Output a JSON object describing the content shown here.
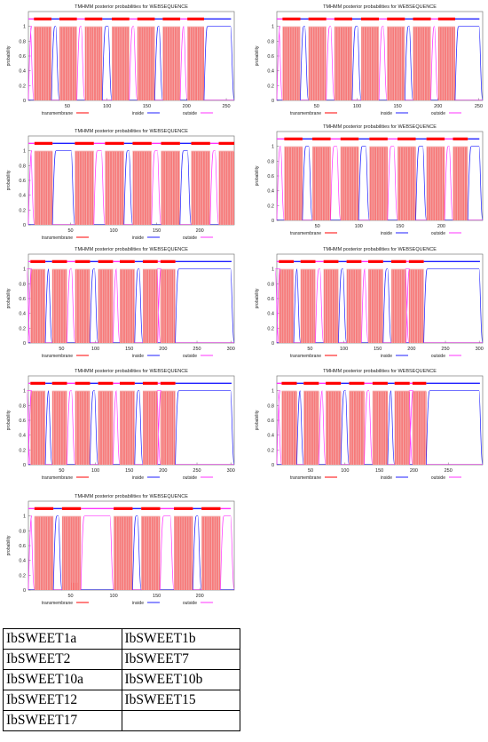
{
  "figure": {
    "panel_title": "TMHMM posterior probabilities for WEBSEQUENCE",
    "ylabel": "probability",
    "legend": [
      "transmembrane",
      "inside",
      "outside"
    ],
    "colors": {
      "transmembrane": "#ff0000",
      "fill": "#f4a6a6",
      "inside": "#1f1fff",
      "outside": "#ff33ff"
    }
  },
  "chart_data": [
    {
      "type": "line",
      "panel": "IbSWEET1a",
      "title": "TMHMM posterior probabilities for WEBSEQUENCE",
      "xlabel": "",
      "ylabel": "probability",
      "xlim": [
        1,
        260
      ],
      "ylim": [
        0,
        1.2
      ],
      "xticks": [
        50,
        100,
        150,
        200,
        250
      ],
      "yticks": [
        0,
        0.2,
        0.4,
        0.6,
        0.8,
        1
      ],
      "tm_segments": [
        [
          8,
          30
        ],
        [
          40,
          62
        ],
        [
          72,
          94
        ],
        [
          106,
          128
        ],
        [
          138,
          160
        ],
        [
          170,
          192
        ],
        [
          201,
          222
        ]
      ],
      "series": [
        {
          "name": "transmembrane"
        },
        {
          "name": "inside"
        },
        {
          "name": "outside"
        }
      ],
      "legend_position": "bottom"
    },
    {
      "type": "line",
      "panel": "IbSWEET1b",
      "title": "TMHMM posterior probabilities for WEBSEQUENCE",
      "xlabel": "",
      "ylabel": "probability",
      "xlim": [
        1,
        255
      ],
      "ylim": [
        0,
        1.2
      ],
      "xticks": [
        50,
        100,
        150,
        200,
        250
      ],
      "yticks": [
        0,
        0.2,
        0.4,
        0.6,
        0.8,
        1
      ],
      "tm_segments": [
        [
          8,
          30
        ],
        [
          40,
          62
        ],
        [
          72,
          94
        ],
        [
          105,
          127
        ],
        [
          137,
          159
        ],
        [
          169,
          191
        ],
        [
          200,
          221
        ]
      ],
      "series": [
        {
          "name": "transmembrane"
        },
        {
          "name": "inside"
        },
        {
          "name": "outside"
        }
      ],
      "legend_position": "bottom"
    },
    {
      "type": "line",
      "panel": "IbSWEET2",
      "title": "TMHMM posterior probabilities for WEBSEQUENCE",
      "xlabel": "",
      "ylabel": "probability",
      "xlim": [
        1,
        240
      ],
      "ylim": [
        0,
        1.2
      ],
      "xticks": [
        50,
        100,
        150,
        200
      ],
      "yticks": [
        0,
        0.2,
        0.4,
        0.6,
        0.8,
        1
      ],
      "tm_segments": [
        [
          8,
          29
        ],
        [
          55,
          77
        ],
        [
          90,
          112
        ],
        [
          122,
          144
        ],
        [
          155,
          177
        ],
        [
          190,
          212
        ],
        [
          222,
          240
        ]
      ],
      "series": [
        {
          "name": "transmembrane"
        },
        {
          "name": "inside"
        },
        {
          "name": "outside"
        }
      ],
      "legend_position": "bottom"
    },
    {
      "type": "line",
      "panel": "IbSWEET7",
      "title": "TMHMM posterior probabilities for WEBSEQUENCE",
      "xlabel": "",
      "ylabel": "probability",
      "xlim": [
        1,
        250
      ],
      "ylim": [
        0,
        1.2
      ],
      "xticks": [
        50,
        100,
        150,
        200
      ],
      "yticks": [
        0,
        0.2,
        0.4,
        0.6,
        0.8,
        1
      ],
      "tm_segments": [
        [
          10,
          32
        ],
        [
          44,
          66
        ],
        [
          78,
          100
        ],
        [
          113,
          135
        ],
        [
          147,
          169
        ],
        [
          182,
          204
        ],
        [
          214,
          232
        ]
      ],
      "series": [
        {
          "name": "transmembrane"
        },
        {
          "name": "inside"
        },
        {
          "name": "outside"
        }
      ],
      "legend_position": "bottom"
    },
    {
      "type": "line",
      "panel": "IbSWEET10a",
      "title": "TMHMM posterior probabilities for WEBSEQUENCE",
      "xlabel": "",
      "ylabel": "probability",
      "xlim": [
        1,
        305
      ],
      "ylim": [
        0,
        1.2
      ],
      "xticks": [
        50,
        100,
        150,
        200,
        250,
        300
      ],
      "yticks": [
        0,
        0.2,
        0.4,
        0.6,
        0.8,
        1
      ],
      "tm_segments": [
        [
          4,
          26
        ],
        [
          36,
          58
        ],
        [
          70,
          92
        ],
        [
          104,
          126
        ],
        [
          136,
          158
        ],
        [
          170,
          192
        ],
        [
          196,
          218
        ]
      ],
      "series": [
        {
          "name": "transmembrane"
        },
        {
          "name": "inside"
        },
        {
          "name": "outside"
        }
      ],
      "legend_position": "bottom"
    },
    {
      "type": "line",
      "panel": "IbSWEET10b",
      "title": "TMHMM posterior probabilities for WEBSEQUENCE",
      "xlabel": "",
      "ylabel": "probability",
      "xlim": [
        1,
        305
      ],
      "ylim": [
        0,
        1.2
      ],
      "xticks": [
        50,
        100,
        150,
        200,
        250,
        300
      ],
      "yticks": [
        0,
        0.2,
        0.4,
        0.6,
        0.8,
        1
      ],
      "tm_segments": [
        [
          4,
          26
        ],
        [
          36,
          58
        ],
        [
          70,
          92
        ],
        [
          104,
          126
        ],
        [
          136,
          158
        ],
        [
          170,
          192
        ],
        [
          196,
          218
        ]
      ],
      "series": [
        {
          "name": "transmembrane"
        },
        {
          "name": "inside"
        },
        {
          "name": "outside"
        }
      ],
      "legend_position": "bottom"
    },
    {
      "type": "line",
      "panel": "IbSWEET12",
      "title": "TMHMM posterior probabilities for WEBSEQUENCE",
      "xlabel": "",
      "ylabel": "probability",
      "xlim": [
        1,
        305
      ],
      "ylim": [
        0,
        1.2
      ],
      "xticks": [
        50,
        100,
        150,
        200,
        250,
        300
      ],
      "yticks": [
        0,
        0.2,
        0.4,
        0.6,
        0.8,
        1
      ],
      "tm_segments": [
        [
          4,
          26
        ],
        [
          36,
          58
        ],
        [
          70,
          92
        ],
        [
          104,
          126
        ],
        [
          136,
          158
        ],
        [
          170,
          192
        ],
        [
          196,
          218
        ]
      ],
      "series": [
        {
          "name": "transmembrane"
        },
        {
          "name": "inside"
        },
        {
          "name": "outside"
        }
      ],
      "legend_position": "bottom"
    },
    {
      "type": "line",
      "panel": "IbSWEET15",
      "title": "TMHMM posterior probabilities for WEBSEQUENCE",
      "xlabel": "",
      "ylabel": "probability",
      "xlim": [
        1,
        300
      ],
      "ylim": [
        0,
        1.2
      ],
      "xticks": [
        50,
        100,
        150,
        200,
        250
      ],
      "yticks": [
        0,
        0.2,
        0.4,
        0.6,
        0.8,
        1
      ],
      "tm_segments": [
        [
          8,
          30
        ],
        [
          40,
          62
        ],
        [
          72,
          94
        ],
        [
          106,
          128
        ],
        [
          140,
          162
        ],
        [
          172,
          194
        ],
        [
          198,
          218
        ]
      ],
      "series": [
        {
          "name": "transmembrane"
        },
        {
          "name": "inside"
        },
        {
          "name": "outside"
        }
      ],
      "legend_position": "bottom"
    },
    {
      "type": "line",
      "panel": "IbSWEET17",
      "title": "TMHMM posterior probabilities for WEBSEQUENCE",
      "xlabel": "",
      "ylabel": "probability",
      "xlim": [
        1,
        240
      ],
      "ylim": [
        0,
        1.2
      ],
      "xticks": [
        50,
        100,
        150,
        200
      ],
      "yticks": [
        0,
        0.2,
        0.4,
        0.6,
        0.8,
        1
      ],
      "tm_segments": [
        [
          8,
          30
        ],
        [
          40,
          62
        ],
        [
          100,
          122
        ],
        [
          132,
          154
        ],
        [
          170,
          192
        ],
        [
          202,
          224
        ]
      ],
      "dip_segment": [
        50,
        58
      ],
      "series": [
        {
          "name": "transmembrane"
        },
        {
          "name": "inside"
        },
        {
          "name": "outside"
        }
      ],
      "legend_position": "bottom"
    }
  ],
  "panel_labels": {
    "rows": [
      [
        "IbSWEET1a",
        "IbSWEET1b"
      ],
      [
        "IbSWEET2",
        "IbSWEET7"
      ],
      [
        "IbSWEET10a",
        "IbSWEET10b"
      ],
      [
        "IbSWEET12",
        "IbSWEET15"
      ],
      [
        "IbSWEET17",
        ""
      ]
    ]
  }
}
